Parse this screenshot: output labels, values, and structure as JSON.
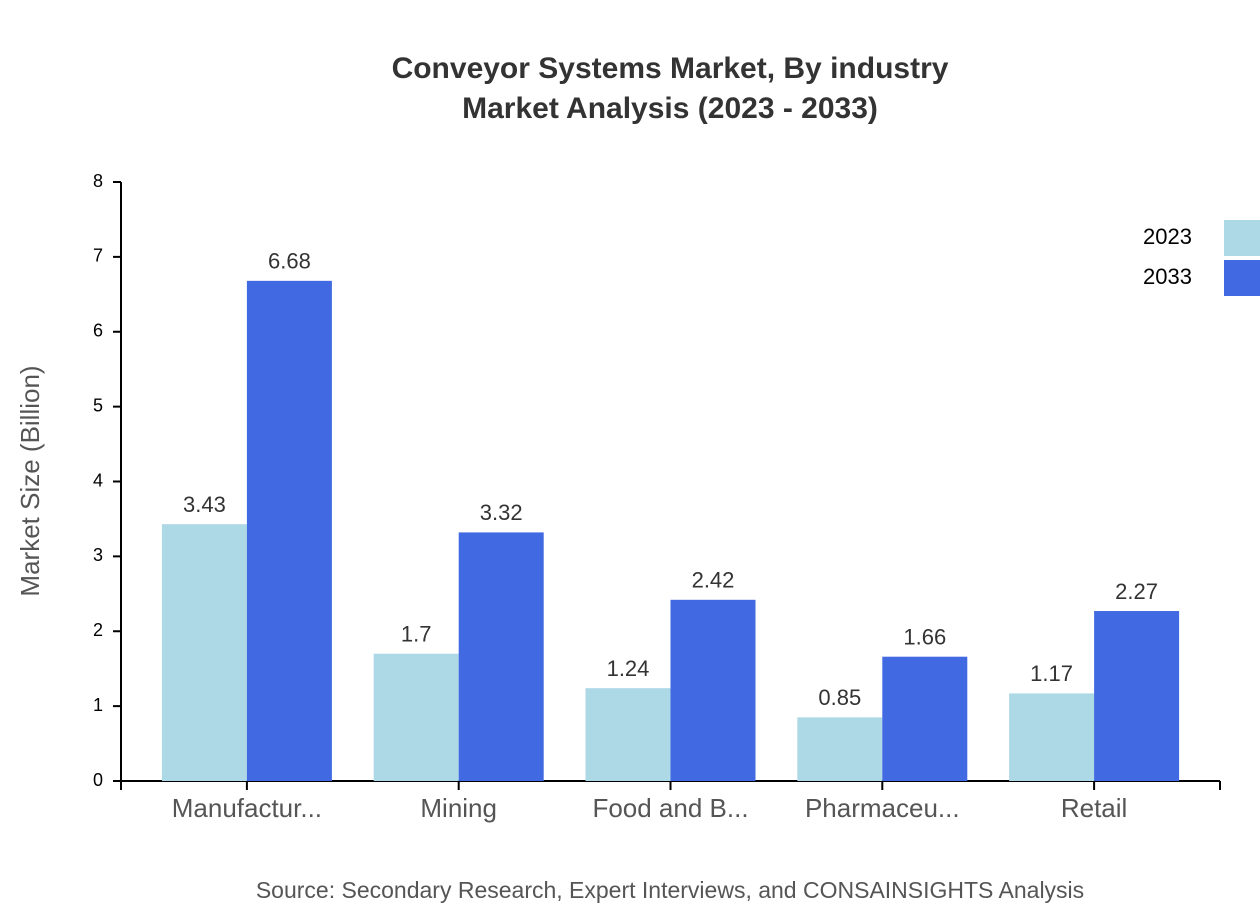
{
  "chart_data": {
    "type": "bar",
    "title": "Conveyor Systems Market, By industry",
    "subtitle": "Market Analysis (2023 - 2033)",
    "y_label": "Market Size (Billion)",
    "source": "Source: Secondary Research, Expert Interviews, and CONSAINSIGHTS Analysis",
    "categories": [
      "Manufactur...",
      "Mining",
      "Food and B...",
      "Pharmaceu...",
      "Retail"
    ],
    "series": [
      {
        "name": "2023",
        "color": "#add8e6",
        "values": [
          3.43,
          1.7,
          1.24,
          0.85,
          1.17
        ]
      },
      {
        "name": "2033",
        "color": "#4169e1",
        "values": [
          6.68,
          3.32,
          2.42,
          1.66,
          2.27
        ]
      }
    ],
    "ylim": [
      0,
      8
    ],
    "yticks": [
      0,
      1,
      2,
      3,
      4,
      5,
      6,
      7,
      8
    ],
    "legend": "top-right"
  }
}
